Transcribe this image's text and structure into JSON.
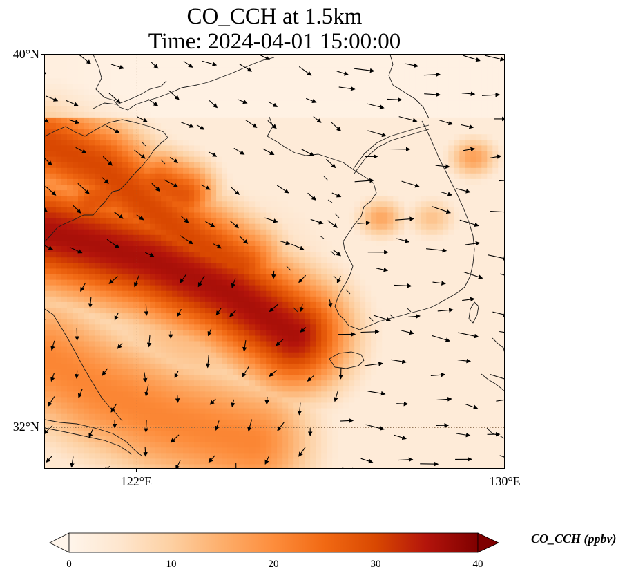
{
  "title": {
    "line1": "CO_CCH at 1.5km",
    "line2": "Time: 2024-04-01 15:00:00"
  },
  "map": {
    "lat_range": [
      31.1,
      40.0
    ],
    "lon_range": [
      120.0,
      130.0
    ],
    "lat_ticks": [
      {
        "value": 40,
        "label": "40°N"
      },
      {
        "value": 32,
        "label": "32°N"
      }
    ],
    "lon_ticks": [
      {
        "value": 122,
        "label": "122°E"
      },
      {
        "value": 130,
        "label": "130°E"
      }
    ],
    "gridlines": {
      "lat": [
        32
      ],
      "lon": [
        122
      ],
      "style": "dotted"
    },
    "plume_ridges": [
      {
        "points": [
          [
            120.0,
            36.2
          ],
          [
            121.0,
            35.95
          ],
          [
            122.3,
            35.6
          ],
          [
            124.0,
            34.9
          ],
          [
            125.4,
            34.0
          ]
        ],
        "width_deg": 0.9,
        "peak": 36
      },
      {
        "points": [
          [
            120.0,
            38.1
          ],
          [
            121.2,
            37.6
          ],
          [
            122.3,
            36.7
          ],
          [
            123.2,
            36.0
          ],
          [
            124.2,
            35.4
          ]
        ],
        "width_deg": 0.75,
        "peak": 30
      },
      {
        "points": [
          [
            120.2,
            36.0
          ],
          [
            121.1,
            36.9
          ],
          [
            122.5,
            37.2
          ],
          [
            123.0,
            37.0
          ]
        ],
        "width_deg": 0.55,
        "peak": 28
      },
      {
        "points": [
          [
            120.0,
            33.5
          ],
          [
            121.2,
            32.8
          ],
          [
            122.6,
            32.2
          ],
          [
            124.5,
            31.7
          ]
        ],
        "width_deg": 1.0,
        "peak": 21
      }
    ],
    "hotspots_korea": [
      {
        "lon": 129.3,
        "lat": 37.8,
        "value": 17
      },
      {
        "lon": 127.3,
        "lat": 36.5,
        "value": 16
      },
      {
        "lon": 128.4,
        "lat": 36.5,
        "value": 12
      }
    ]
  },
  "colorbar": {
    "label": "CO_CCH (ppbv)",
    "min": 0,
    "max": 40,
    "ticks": [
      0,
      10,
      20,
      30,
      40
    ],
    "extend": "both",
    "colormap": [
      "#fff5eb",
      "#fee6ce",
      "#fdd0a2",
      "#fdae6b",
      "#fd8d3c",
      "#f16913",
      "#d94801",
      "#b3140b",
      "#7f0000"
    ]
  },
  "colors": {
    "coastline": "#1a1a1a",
    "wind_arrow": "#000000",
    "gridline": "#8a6a4a"
  }
}
